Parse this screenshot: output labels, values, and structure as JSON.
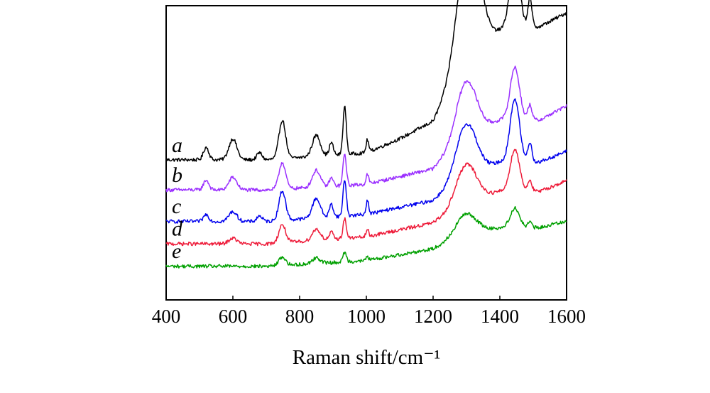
{
  "chart_data": {
    "type": "line",
    "title": "",
    "xlabel": "Raman shift/cm⁻¹",
    "ylabel": "",
    "xlim": [
      400,
      1600
    ],
    "ylim": [
      0,
      420
    ],
    "x_ticks": [
      "400",
      "600",
      "800",
      "1000",
      "1200",
      "1400",
      "1600"
    ],
    "y_ticks": [],
    "grid": false,
    "legend": "inline labels at left",
    "series": [
      {
        "name": "a",
        "color": "#000000",
        "offset": 200,
        "baseline": [
          [
            400,
            0
          ],
          [
            700,
            0
          ],
          [
            1000,
            10
          ],
          [
            1100,
            30
          ],
          [
            1200,
            55
          ],
          [
            1280,
            130
          ],
          [
            1300,
            160
          ],
          [
            1360,
            175
          ],
          [
            1420,
            190
          ],
          [
            1520,
            190
          ],
          [
            1600,
            210
          ]
        ],
        "peaks": [
          [
            520,
            18,
            8
          ],
          [
            600,
            30,
            12
          ],
          [
            680,
            10,
            8
          ],
          [
            748,
            55,
            10
          ],
          [
            850,
            30,
            12
          ],
          [
            895,
            18,
            6
          ],
          [
            935,
            68,
            5
          ],
          [
            1003,
            18,
            4
          ],
          [
            1300,
            150,
            30
          ],
          [
            1340,
            30,
            20
          ],
          [
            1445,
            100,
            14
          ],
          [
            1490,
            40,
            6
          ]
        ]
      },
      {
        "name": "b",
        "color": "#9b30ff",
        "offset": 157,
        "baseline": [
          [
            400,
            0
          ],
          [
            700,
            0
          ],
          [
            1000,
            8
          ],
          [
            1200,
            30
          ],
          [
            1280,
            70
          ],
          [
            1400,
            100
          ],
          [
            1520,
            100
          ],
          [
            1600,
            120
          ]
        ],
        "peaks": [
          [
            520,
            14,
            8
          ],
          [
            600,
            18,
            12
          ],
          [
            748,
            38,
            10
          ],
          [
            850,
            24,
            12
          ],
          [
            895,
            12,
            6
          ],
          [
            935,
            45,
            5
          ],
          [
            1003,
            14,
            4
          ],
          [
            1300,
            80,
            30
          ],
          [
            1445,
            75,
            14
          ],
          [
            1490,
            22,
            6
          ]
        ]
      },
      {
        "name": "c",
        "color": "#0000ee",
        "offset": 112,
        "baseline": [
          [
            400,
            0
          ],
          [
            700,
            0
          ],
          [
            1000,
            10
          ],
          [
            1200,
            30
          ],
          [
            1280,
            60
          ],
          [
            1400,
            85
          ],
          [
            1520,
            85
          ],
          [
            1600,
            100
          ]
        ],
        "peaks": [
          [
            520,
            10,
            8
          ],
          [
            600,
            14,
            12
          ],
          [
            680,
            8,
            8
          ],
          [
            748,
            42,
            10
          ],
          [
            850,
            28,
            12
          ],
          [
            895,
            18,
            6
          ],
          [
            935,
            52,
            5
          ],
          [
            1003,
            20,
            4
          ],
          [
            1300,
            75,
            30
          ],
          [
            1445,
            90,
            14
          ],
          [
            1490,
            28,
            6
          ]
        ]
      },
      {
        "name": "d",
        "color": "#ee1c3a",
        "offset": 80,
        "baseline": [
          [
            400,
            0
          ],
          [
            700,
            0
          ],
          [
            1000,
            10
          ],
          [
            1200,
            30
          ],
          [
            1280,
            55
          ],
          [
            1400,
            75
          ],
          [
            1520,
            75
          ],
          [
            1600,
            90
          ]
        ],
        "peaks": [
          [
            600,
            8,
            12
          ],
          [
            748,
            26,
            10
          ],
          [
            850,
            16,
            12
          ],
          [
            895,
            10,
            6
          ],
          [
            935,
            28,
            5
          ],
          [
            1003,
            10,
            4
          ],
          [
            1300,
            55,
            30
          ],
          [
            1445,
            60,
            14
          ],
          [
            1490,
            16,
            6
          ]
        ]
      },
      {
        "name": "e",
        "color": "#00a000",
        "offset": 48,
        "baseline": [
          [
            400,
            0
          ],
          [
            700,
            0
          ],
          [
            1000,
            8
          ],
          [
            1200,
            25
          ],
          [
            1280,
            45
          ],
          [
            1400,
            55
          ],
          [
            1520,
            55
          ],
          [
            1600,
            65
          ]
        ],
        "peaks": [
          [
            748,
            12,
            10
          ],
          [
            850,
            8,
            12
          ],
          [
            935,
            14,
            5
          ],
          [
            1003,
            6,
            4
          ],
          [
            1300,
            28,
            30
          ],
          [
            1445,
            28,
            14
          ],
          [
            1490,
            8,
            6
          ]
        ]
      }
    ]
  }
}
